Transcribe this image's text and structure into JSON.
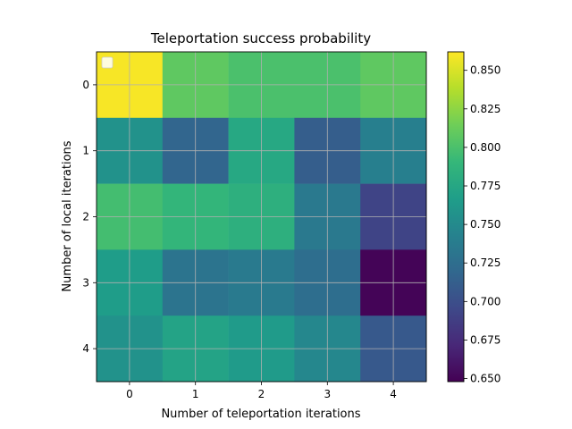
{
  "chart_data": {
    "type": "heatmap",
    "title": "Teleportation success probability",
    "xlabel": "Number of teleportation iterations",
    "ylabel": "Number of local iterations",
    "x_ticks": [
      "0",
      "1",
      "2",
      "3",
      "4"
    ],
    "y_ticks": [
      "0",
      "1",
      "2",
      "3",
      "4"
    ],
    "values": [
      [
        0.86,
        0.808,
        0.8,
        0.8,
        0.808
      ],
      [
        0.757,
        0.718,
        0.776,
        0.712,
        0.74
      ],
      [
        0.797,
        0.789,
        0.783,
        0.735,
        0.692
      ],
      [
        0.766,
        0.73,
        0.736,
        0.725,
        0.65
      ],
      [
        0.757,
        0.772,
        0.764,
        0.747,
        0.708
      ]
    ],
    "colorbar": {
      "colormap": "viridis",
      "vmin": 0.648,
      "vmax": 0.862,
      "ticks": [
        "0.650",
        "0.675",
        "0.700",
        "0.725",
        "0.750",
        "0.775",
        "0.800",
        "0.825",
        "0.850"
      ]
    },
    "grid": true,
    "legend": "upper-left, empty"
  }
}
